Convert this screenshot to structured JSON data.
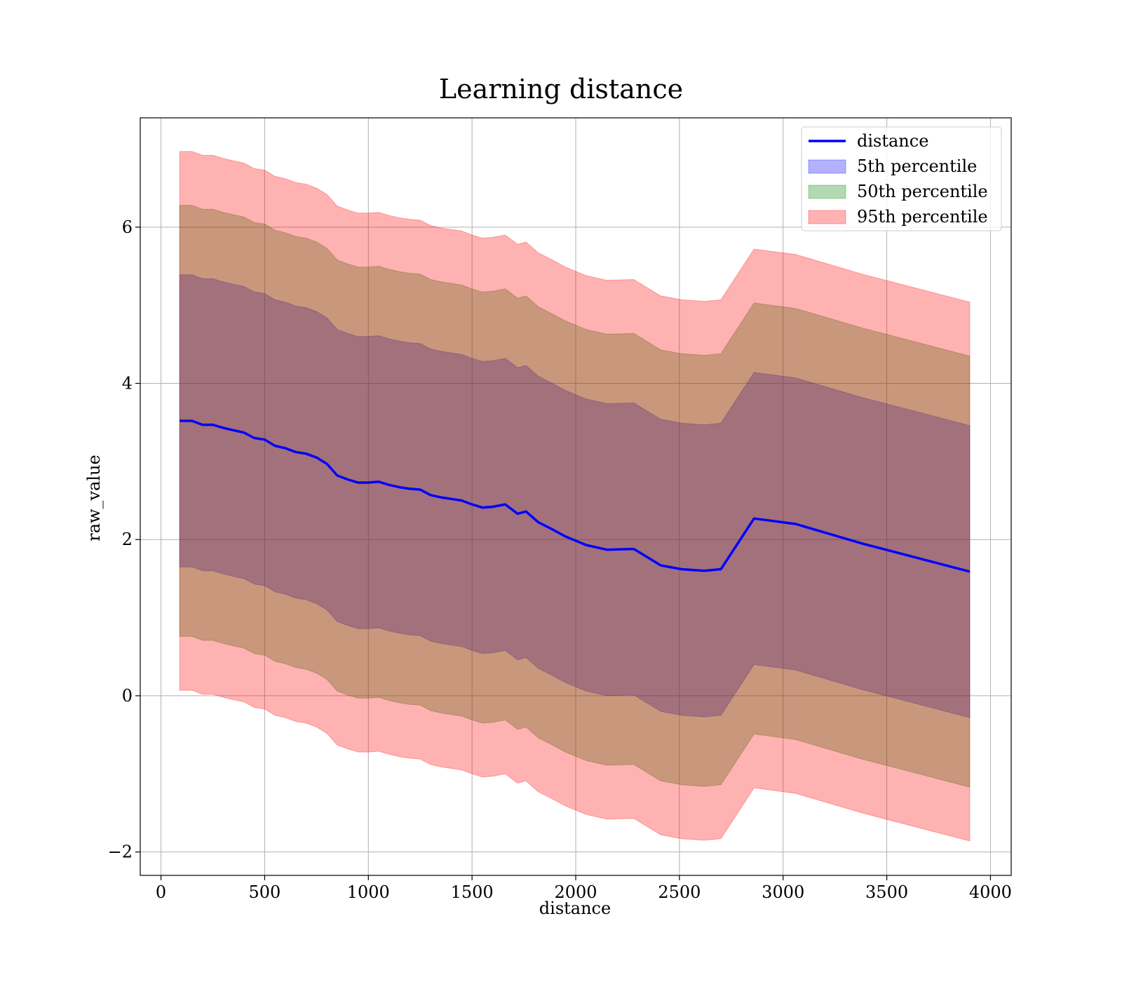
{
  "chart_data": {
    "type": "line",
    "title": "Learning distance",
    "xlabel": "distance",
    "ylabel": "raw_value",
    "xlim": [
      -100,
      4100
    ],
    "ylim": [
      -2.3,
      7.4
    ],
    "xticks": [
      0,
      500,
      1000,
      1500,
      2000,
      2500,
      3000,
      3500,
      4000
    ],
    "yticks": [
      -2,
      0,
      2,
      4,
      6
    ],
    "xtick_labels": [
      "0",
      "500",
      "1000",
      "1500",
      "2000",
      "2500",
      "3000",
      "3500",
      "4000"
    ],
    "ytick_labels": [
      "−2",
      "0",
      "2",
      "4",
      "6"
    ],
    "grid": true,
    "legend_position": "top-right",
    "x": [
      90,
      150,
      200,
      250,
      300,
      350,
      400,
      450,
      500,
      550,
      600,
      650,
      700,
      750,
      800,
      850,
      900,
      950,
      1000,
      1050,
      1100,
      1150,
      1200,
      1250,
      1300,
      1350,
      1400,
      1450,
      1500,
      1550,
      1600,
      1660,
      1720,
      1760,
      1820,
      1880,
      1950,
      2050,
      2150,
      2280,
      2410,
      2510,
      2620,
      2700,
      2860,
      3060,
      3380,
      3900
    ],
    "series": [
      {
        "name": "distance",
        "kind": "line",
        "color": "#0000ff",
        "values": [
          3.52,
          3.52,
          3.47,
          3.47,
          3.43,
          3.4,
          3.37,
          3.3,
          3.28,
          3.2,
          3.17,
          3.12,
          3.1,
          3.05,
          2.97,
          2.82,
          2.77,
          2.73,
          2.73,
          2.74,
          2.7,
          2.67,
          2.65,
          2.64,
          2.57,
          2.54,
          2.52,
          2.5,
          2.45,
          2.41,
          2.42,
          2.45,
          2.33,
          2.36,
          2.22,
          2.14,
          2.04,
          1.93,
          1.87,
          1.88,
          1.67,
          1.62,
          1.6,
          1.62,
          2.27,
          2.2,
          1.95,
          1.59
        ]
      },
      {
        "name": "5th percentile",
        "kind": "band",
        "color": "#0000ff",
        "lower": [
          1.65,
          1.65,
          1.6,
          1.6,
          1.56,
          1.53,
          1.5,
          1.43,
          1.41,
          1.33,
          1.3,
          1.25,
          1.23,
          1.18,
          1.1,
          0.95,
          0.9,
          0.86,
          0.86,
          0.87,
          0.83,
          0.8,
          0.78,
          0.77,
          0.7,
          0.67,
          0.65,
          0.63,
          0.58,
          0.54,
          0.55,
          0.58,
          0.46,
          0.49,
          0.35,
          0.27,
          0.17,
          0.06,
          0.0,
          0.01,
          -0.2,
          -0.25,
          -0.27,
          -0.25,
          0.4,
          0.33,
          0.08,
          -0.28
        ],
        "upper": [
          5.39,
          5.39,
          5.34,
          5.34,
          5.3,
          5.27,
          5.24,
          5.17,
          5.15,
          5.07,
          5.04,
          4.99,
          4.97,
          4.92,
          4.84,
          4.69,
          4.64,
          4.6,
          4.6,
          4.61,
          4.57,
          4.54,
          4.52,
          4.51,
          4.44,
          4.41,
          4.39,
          4.37,
          4.32,
          4.28,
          4.29,
          4.32,
          4.2,
          4.23,
          4.09,
          4.01,
          3.91,
          3.8,
          3.74,
          3.75,
          3.54,
          3.49,
          3.47,
          3.49,
          4.14,
          4.07,
          3.82,
          3.46
        ]
      },
      {
        "name": "50th percentile",
        "kind": "band",
        "color": "#008000",
        "lower": [
          0.76,
          0.76,
          0.71,
          0.71,
          0.67,
          0.64,
          0.61,
          0.54,
          0.52,
          0.44,
          0.41,
          0.36,
          0.34,
          0.29,
          0.21,
          0.06,
          0.01,
          -0.03,
          -0.03,
          -0.02,
          -0.06,
          -0.09,
          -0.11,
          -0.12,
          -0.19,
          -0.22,
          -0.24,
          -0.26,
          -0.31,
          -0.35,
          -0.34,
          -0.31,
          -0.43,
          -0.4,
          -0.54,
          -0.62,
          -0.72,
          -0.83,
          -0.89,
          -0.88,
          -1.09,
          -1.14,
          -1.16,
          -1.14,
          -0.49,
          -0.56,
          -0.81,
          -1.17
        ],
        "upper": [
          6.28,
          6.28,
          6.23,
          6.23,
          6.19,
          6.16,
          6.13,
          6.06,
          6.04,
          5.96,
          5.93,
          5.88,
          5.86,
          5.81,
          5.73,
          5.58,
          5.53,
          5.49,
          5.49,
          5.5,
          5.46,
          5.43,
          5.41,
          5.4,
          5.33,
          5.3,
          5.28,
          5.26,
          5.21,
          5.17,
          5.18,
          5.21,
          5.09,
          5.12,
          4.98,
          4.9,
          4.8,
          4.69,
          4.63,
          4.64,
          4.43,
          4.38,
          4.36,
          4.38,
          5.03,
          4.96,
          4.71,
          4.35
        ]
      },
      {
        "name": "95th percentile",
        "kind": "band",
        "color": "#ff0000",
        "lower": [
          0.07,
          0.07,
          0.02,
          0.02,
          -0.02,
          -0.05,
          -0.08,
          -0.15,
          -0.17,
          -0.25,
          -0.28,
          -0.33,
          -0.35,
          -0.4,
          -0.48,
          -0.63,
          -0.68,
          -0.72,
          -0.72,
          -0.71,
          -0.75,
          -0.78,
          -0.8,
          -0.81,
          -0.88,
          -0.91,
          -0.93,
          -0.95,
          -1.0,
          -1.04,
          -1.03,
          -1.0,
          -1.12,
          -1.09,
          -1.23,
          -1.31,
          -1.41,
          -1.52,
          -1.58,
          -1.57,
          -1.78,
          -1.83,
          -1.85,
          -1.83,
          -1.18,
          -1.25,
          -1.5,
          -1.86
        ],
        "upper": [
          6.97,
          6.97,
          6.92,
          6.92,
          6.88,
          6.85,
          6.82,
          6.75,
          6.73,
          6.65,
          6.62,
          6.57,
          6.55,
          6.5,
          6.42,
          6.27,
          6.22,
          6.18,
          6.18,
          6.19,
          6.15,
          6.12,
          6.1,
          6.09,
          6.02,
          5.99,
          5.97,
          5.95,
          5.9,
          5.86,
          5.87,
          5.9,
          5.78,
          5.81,
          5.67,
          5.59,
          5.49,
          5.38,
          5.32,
          5.33,
          5.12,
          5.07,
          5.05,
          5.07,
          5.72,
          5.65,
          5.4,
          5.04
        ]
      }
    ]
  }
}
